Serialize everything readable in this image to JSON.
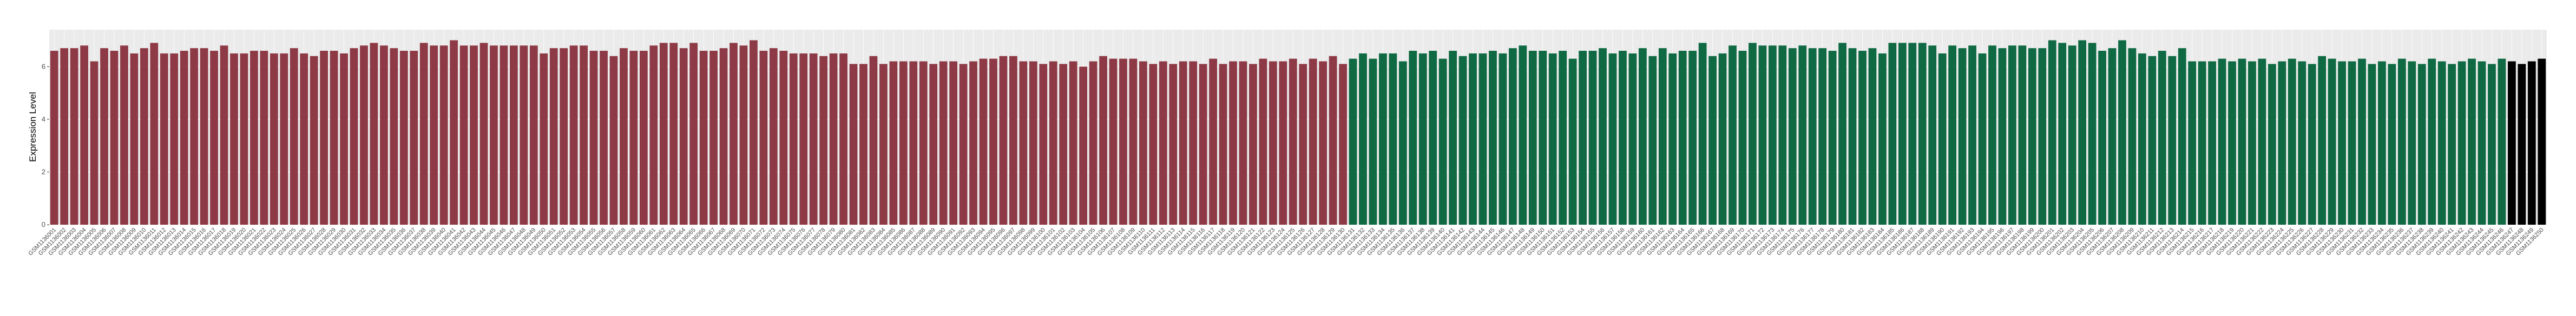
{
  "chart_data": {
    "type": "bar",
    "y_label": "Expression Level",
    "ylim": [
      0,
      7.4
    ],
    "yticks": [
      0,
      2,
      4,
      6
    ],
    "grid": true,
    "categories": [
      "GSM1136001",
      "GSM1136002",
      "GSM1136003",
      "GSM1136004",
      "GSM1136005",
      "GSM1136006",
      "GSM1136007",
      "GSM1136008",
      "GSM1136009",
      "GSM1136010",
      "GSM1136011",
      "GSM1136012",
      "GSM1136013",
      "GSM1136014",
      "GSM1136015",
      "GSM1136016",
      "GSM1136017",
      "GSM1136018",
      "GSM1136019",
      "GSM1136020",
      "GSM1136021",
      "GSM1136022",
      "GSM1136023",
      "GSM1136024",
      "GSM1136025",
      "GSM1136026",
      "GSM1136027",
      "GSM1136028",
      "GSM1136029",
      "GSM1136030",
      "GSM1136031",
      "GSM1136032",
      "GSM1136033",
      "GSM1136034",
      "GSM1136035",
      "GSM1136036",
      "GSM1136037",
      "GSM1136038",
      "GSM1136039",
      "GSM1136040",
      "GSM1136041",
      "GSM1136042",
      "GSM1136043",
      "GSM1136044",
      "GSM1136045",
      "GSM1136046",
      "GSM1136047",
      "GSM1136048",
      "GSM1136049",
      "GSM1136050",
      "GSM1136051",
      "GSM1136052",
      "GSM1136053",
      "GSM1136054",
      "GSM1136055",
      "GSM1136056",
      "GSM1136057",
      "GSM1136058",
      "GSM1136059",
      "GSM1136060",
      "GSM1136061",
      "GSM1136062",
      "GSM1136063",
      "GSM1136064",
      "GSM1136065",
      "GSM1136066",
      "GSM1136067",
      "GSM1136068",
      "GSM1136069",
      "GSM1136070",
      "GSM1136071",
      "GSM1136072",
      "GSM1136073",
      "GSM1136074",
      "GSM1136075",
      "GSM1136076",
      "GSM1136077",
      "GSM1136078",
      "GSM1136079",
      "GSM1136080",
      "GSM1136081",
      "GSM1136082",
      "GSM1136083",
      "GSM1136084",
      "GSM1136085",
      "GSM1136086",
      "GSM1136087",
      "GSM1136088",
      "GSM1136089",
      "GSM1136090",
      "GSM1136091",
      "GSM1136092",
      "GSM1136093",
      "GSM1136094",
      "GSM1136095",
      "GSM1136096",
      "GSM1136097",
      "GSM1136098",
      "GSM1136099",
      "GSM1136100",
      "GSM1136101",
      "GSM1136102",
      "GSM1136103",
      "GSM1136104",
      "GSM1136105",
      "GSM1136106",
      "GSM1136107",
      "GSM1136108",
      "GSM1136109",
      "GSM1136110",
      "GSM1136111",
      "GSM1136112",
      "GSM1136113",
      "GSM1136114",
      "GSM1136115",
      "GSM1136116",
      "GSM1136117",
      "GSM1136118",
      "GSM1136119",
      "GSM1136120",
      "GSM1136121",
      "GSM1136122",
      "GSM1136123",
      "GSM1136124",
      "GSM1136125",
      "GSM1136126",
      "GSM1136127",
      "GSM1136128",
      "GSM1136129",
      "GSM1136130",
      "GSM1136131",
      "GSM1136132",
      "GSM1136133",
      "GSM1136134",
      "GSM1136135",
      "GSM1136136",
      "GSM1136137",
      "GSM1136138",
      "GSM1136139",
      "GSM1136140",
      "GSM1136141",
      "GSM1136142",
      "GSM1136143",
      "GSM1136144",
      "GSM1136145",
      "GSM1136146",
      "GSM1136147",
      "GSM1136148",
      "GSM1136149",
      "GSM1136150",
      "GSM1136151",
      "GSM1136152",
      "GSM1136153",
      "GSM1136154",
      "GSM1136155",
      "GSM1136156",
      "GSM1136157",
      "GSM1136158",
      "GSM1136159",
      "GSM1136160",
      "GSM1136161",
      "GSM1136162",
      "GSM1136163",
      "GSM1136164",
      "GSM1136165",
      "GSM1136166",
      "GSM1136167",
      "GSM1136168",
      "GSM1136169",
      "GSM1136170",
      "GSM1136171",
      "GSM1136172",
      "GSM1136173",
      "GSM1136174",
      "GSM1136175",
      "GSM1136176",
      "GSM1136177",
      "GSM1136178",
      "GSM1136179",
      "GSM1136180",
      "GSM1136181",
      "GSM1136182",
      "GSM1136183",
      "GSM1136184",
      "GSM1136185",
      "GSM1136186",
      "GSM1136187",
      "GSM1136188",
      "GSM1136189",
      "GSM1136190",
      "GSM1136191",
      "GSM1136192",
      "GSM1136193",
      "GSM1136194",
      "GSM1136195",
      "GSM1136196",
      "GSM1136197",
      "GSM1136198",
      "GSM1136199",
      "GSM1136200",
      "GSM1136201",
      "GSM1136202",
      "GSM1136203",
      "GSM1136204",
      "GSM1136205",
      "GSM1136206",
      "GSM1136207",
      "GSM1136208",
      "GSM1136209",
      "GSM1136210",
      "GSM1136211",
      "GSM1136212",
      "GSM1136213",
      "GSM1136214",
      "GSM1136215",
      "GSM1136216",
      "GSM1136217",
      "GSM1136218",
      "GSM1136219",
      "GSM1136220",
      "GSM1136221",
      "GSM1136222",
      "GSM1136223",
      "GSM1136224",
      "GSM1136225",
      "GSM1136226",
      "GSM1136227",
      "GSM1136228",
      "GSM1136229",
      "GSM1136230",
      "GSM1136231",
      "GSM1136232",
      "GSM1136233",
      "GSM1136234",
      "GSM1136235",
      "GSM1136236",
      "GSM1136237",
      "GSM1136238",
      "GSM1136239",
      "GSM1136240",
      "GSM1136241",
      "GSM1136242",
      "GSM1136243",
      "GSM1136244",
      "GSM1136245",
      "GSM1136246",
      "GSM1136247",
      "GSM1136248",
      "GSM1136249",
      "GSM1136250"
    ],
    "values": [
      6.6,
      6.7,
      6.7,
      6.8,
      6.2,
      6.7,
      6.6,
      6.8,
      6.5,
      6.7,
      6.9,
      6.5,
      6.5,
      6.6,
      6.7,
      6.7,
      6.6,
      6.8,
      6.5,
      6.5,
      6.6,
      6.6,
      6.5,
      6.5,
      6.7,
      6.5,
      6.4,
      6.6,
      6.6,
      6.5,
      6.7,
      6.8,
      6.9,
      6.8,
      6.7,
      6.6,
      6.6,
      6.9,
      6.8,
      6.8,
      7.0,
      6.8,
      6.8,
      6.9,
      6.8,
      6.8,
      6.8,
      6.8,
      6.8,
      6.5,
      6.7,
      6.7,
      6.8,
      6.8,
      6.6,
      6.6,
      6.4,
      6.7,
      6.6,
      6.6,
      6.8,
      6.9,
      6.9,
      6.7,
      6.9,
      6.6,
      6.6,
      6.7,
      6.9,
      6.8,
      7.0,
      6.6,
      6.7,
      6.6,
      6.5,
      6.5,
      6.5,
      6.4,
      6.5,
      6.5,
      6.1,
      6.1,
      6.4,
      6.1,
      6.2,
      6.2,
      6.2,
      6.2,
      6.1,
      6.2,
      6.2,
      6.1,
      6.2,
      6.3,
      6.3,
      6.4,
      6.4,
      6.2,
      6.2,
      6.1,
      6.2,
      6.1,
      6.2,
      6.0,
      6.2,
      6.4,
      6.3,
      6.3,
      6.3,
      6.2,
      6.1,
      6.2,
      6.1,
      6.2,
      6.2,
      6.1,
      6.3,
      6.1,
      6.2,
      6.2,
      6.1,
      6.3,
      6.2,
      6.2,
      6.3,
      6.1,
      6.3,
      6.2,
      6.4,
      6.1,
      6.3,
      6.5,
      6.3,
      6.5,
      6.5,
      6.2,
      6.6,
      6.5,
      6.6,
      6.3,
      6.6,
      6.4,
      6.5,
      6.5,
      6.6,
      6.5,
      6.7,
      6.8,
      6.6,
      6.6,
      6.5,
      6.6,
      6.3,
      6.6,
      6.6,
      6.7,
      6.5,
      6.6,
      6.5,
      6.7,
      6.4,
      6.7,
      6.5,
      6.6,
      6.6,
      6.9,
      6.4,
      6.5,
      6.8,
      6.6,
      6.9,
      6.8,
      6.8,
      6.8,
      6.7,
      6.8,
      6.7,
      6.7,
      6.6,
      6.9,
      6.7,
      6.6,
      6.7,
      6.5,
      6.9,
      6.9,
      6.9,
      6.9,
      6.8,
      6.5,
      6.8,
      6.7,
      6.8,
      6.5,
      6.8,
      6.7,
      6.8,
      6.8,
      6.7,
      6.7,
      7.0,
      6.9,
      6.8,
      7.0,
      6.9,
      6.6,
      6.7,
      7.0,
      6.7,
      6.5,
      6.4,
      6.6,
      6.4,
      6.7,
      6.2,
      6.2,
      6.2,
      6.3,
      6.2,
      6.3,
      6.2,
      6.3,
      6.1,
      6.2,
      6.3,
      6.2,
      6.1,
      6.4,
      6.3,
      6.2,
      6.2,
      6.3,
      6.1,
      6.2,
      6.1,
      6.3,
      6.2,
      6.1,
      6.3,
      6.2,
      6.1,
      6.2,
      6.3,
      6.2,
      6.1,
      6.3,
      6.2,
      6.1,
      6.2,
      6.3
    ],
    "colors": [
      "#8e3a46",
      "#8e3a46",
      "#8e3a46",
      "#8e3a46",
      "#8e3a46",
      "#8e3a46",
      "#8e3a46",
      "#8e3a46",
      "#8e3a46",
      "#8e3a46",
      "#8e3a46",
      "#8e3a46",
      "#8e3a46",
      "#8e3a46",
      "#8e3a46",
      "#8e3a46",
      "#8e3a46",
      "#8e3a46",
      "#8e3a46",
      "#8e3a46",
      "#8e3a46",
      "#8e3a46",
      "#8e3a46",
      "#8e3a46",
      "#8e3a46",
      "#8e3a46",
      "#8e3a46",
      "#8e3a46",
      "#8e3a46",
      "#8e3a46",
      "#8e3a46",
      "#8e3a46",
      "#8e3a46",
      "#8e3a46",
      "#8e3a46",
      "#8e3a46",
      "#8e3a46",
      "#8e3a46",
      "#8e3a46",
      "#8e3a46",
      "#8e3a46",
      "#8e3a46",
      "#8e3a46",
      "#8e3a46",
      "#8e3a46",
      "#8e3a46",
      "#8e3a46",
      "#8e3a46",
      "#8e3a46",
      "#8e3a46",
      "#8e3a46",
      "#8e3a46",
      "#8e3a46",
      "#8e3a46",
      "#8e3a46",
      "#8e3a46",
      "#8e3a46",
      "#8e3a46",
      "#8e3a46",
      "#8e3a46",
      "#8e3a46",
      "#8e3a46",
      "#8e3a46",
      "#8e3a46",
      "#8e3a46",
      "#8e3a46",
      "#8e3a46",
      "#8e3a46",
      "#8e3a46",
      "#8e3a46",
      "#8e3a46",
      "#8e3a46",
      "#8e3a46",
      "#8e3a46",
      "#8e3a46",
      "#8e3a46",
      "#8e3a46",
      "#8e3a46",
      "#8e3a46",
      "#8e3a46",
      "#8e3a46",
      "#8e3a46",
      "#8e3a46",
      "#8e3a46",
      "#8e3a46",
      "#8e3a46",
      "#8e3a46",
      "#8e3a46",
      "#8e3a46",
      "#8e3a46",
      "#8e3a46",
      "#8e3a46",
      "#8e3a46",
      "#8e3a46",
      "#8e3a46",
      "#8e3a46",
      "#8e3a46",
      "#8e3a46",
      "#8e3a46",
      "#8e3a46",
      "#8e3a46",
      "#8e3a46",
      "#8e3a46",
      "#8e3a46",
      "#8e3a46",
      "#8e3a46",
      "#8e3a46",
      "#8e3a46",
      "#8e3a46",
      "#8e3a46",
      "#8e3a46",
      "#8e3a46",
      "#8e3a46",
      "#8e3a46",
      "#8e3a46",
      "#8e3a46",
      "#8e3a46",
      "#8e3a46",
      "#8e3a46",
      "#8e3a46",
      "#8e3a46",
      "#8e3a46",
      "#8e3a46",
      "#8e3a46",
      "#8e3a46",
      "#8e3a46",
      "#8e3a46",
      "#8e3a46",
      "#8e3a46",
      "#8e3a46",
      "#0f6a43",
      "#0f6a43",
      "#0f6a43",
      "#0f6a43",
      "#0f6a43",
      "#0f6a43",
      "#0f6a43",
      "#0f6a43",
      "#0f6a43",
      "#0f6a43",
      "#0f6a43",
      "#0f6a43",
      "#0f6a43",
      "#0f6a43",
      "#0f6a43",
      "#0f6a43",
      "#0f6a43",
      "#0f6a43",
      "#0f6a43",
      "#0f6a43",
      "#0f6a43",
      "#0f6a43",
      "#0f6a43",
      "#0f6a43",
      "#0f6a43",
      "#0f6a43",
      "#0f6a43",
      "#0f6a43",
      "#0f6a43",
      "#0f6a43",
      "#0f6a43",
      "#0f6a43",
      "#0f6a43",
      "#0f6a43",
      "#0f6a43",
      "#0f6a43",
      "#0f6a43",
      "#0f6a43",
      "#0f6a43",
      "#0f6a43",
      "#0f6a43",
      "#0f6a43",
      "#0f6a43",
      "#0f6a43",
      "#0f6a43",
      "#0f6a43",
      "#0f6a43",
      "#0f6a43",
      "#0f6a43",
      "#0f6a43",
      "#0f6a43",
      "#0f6a43",
      "#0f6a43",
      "#0f6a43",
      "#0f6a43",
      "#0f6a43",
      "#0f6a43",
      "#0f6a43",
      "#0f6a43",
      "#0f6a43",
      "#0f6a43",
      "#0f6a43",
      "#0f6a43",
      "#0f6a43",
      "#0f6a43",
      "#0f6a43",
      "#0f6a43",
      "#0f6a43",
      "#0f6a43",
      "#0f6a43",
      "#0f6a43",
      "#0f6a43",
      "#0f6a43",
      "#0f6a43",
      "#0f6a43",
      "#0f6a43",
      "#0f6a43",
      "#0f6a43",
      "#0f6a43",
      "#0f6a43",
      "#0f6a43",
      "#0f6a43",
      "#0f6a43",
      "#0f6a43",
      "#0f6a43",
      "#0f6a43",
      "#0f6a43",
      "#0f6a43",
      "#0f6a43",
      "#0f6a43",
      "#0f6a43",
      "#0f6a43",
      "#0f6a43",
      "#0f6a43",
      "#0f6a43",
      "#0f6a43",
      "#0f6a43",
      "#0f6a43",
      "#0f6a43",
      "#0f6a43",
      "#0f6a43",
      "#0f6a43",
      "#0f6a43",
      "#0f6a43",
      "#0f6a43",
      "#0f6a43",
      "#0f6a43",
      "#0f6a43",
      "#0f6a43",
      "#0f6a43",
      "#0f6a43",
      "#0f6a43",
      "#0f6a43",
      "#0f6a43",
      "#0f6a43",
      "#0f6a43"
    ]
  }
}
